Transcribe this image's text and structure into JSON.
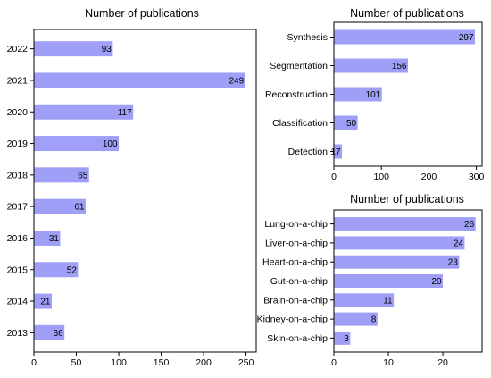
{
  "chart_data": [
    {
      "id": "years",
      "type": "bar",
      "orientation": "horizontal",
      "title": "Number of publications",
      "categories": [
        "2022",
        "2021",
        "2020",
        "2019",
        "2018",
        "2017",
        "2016",
        "2015",
        "2014",
        "2013"
      ],
      "values": [
        93,
        249,
        117,
        100,
        65,
        61,
        31,
        52,
        21,
        36
      ],
      "xticks": [
        0,
        50,
        100,
        150,
        200,
        250
      ],
      "xlim": [
        0,
        262
      ],
      "xlabel": "",
      "ylabel": "",
      "grid": false,
      "bar_color": "#9f9ff8"
    },
    {
      "id": "methods",
      "type": "bar",
      "orientation": "horizontal",
      "title": "Number of publications",
      "categories": [
        "Synthesis",
        "Segmentation",
        "Reconstruction",
        "Classification",
        "Detection"
      ],
      "values": [
        297,
        156,
        101,
        50,
        17
      ],
      "xticks": [
        0,
        100,
        200,
        300
      ],
      "xlim": [
        0,
        312
      ],
      "xlabel": "",
      "ylabel": "",
      "grid": false,
      "bar_color": "#9f9ff8"
    },
    {
      "id": "organs",
      "type": "bar",
      "orientation": "horizontal",
      "title": "Number of publications",
      "categories": [
        "Lung-on-a-chip",
        "Liver-on-a-chip",
        "Heart-on-a-chip",
        "Gut-on-a-chip",
        "Brain-on-a-chip",
        "Kidney-on-a-chip",
        "Skin-on-a-chip"
      ],
      "values": [
        26,
        24,
        23,
        20,
        11,
        8,
        3
      ],
      "xticks": [
        0,
        10,
        20
      ],
      "xlim": [
        0,
        27.2
      ],
      "xlabel": "",
      "ylabel": "",
      "grid": false,
      "bar_color": "#9f9ff8"
    }
  ]
}
